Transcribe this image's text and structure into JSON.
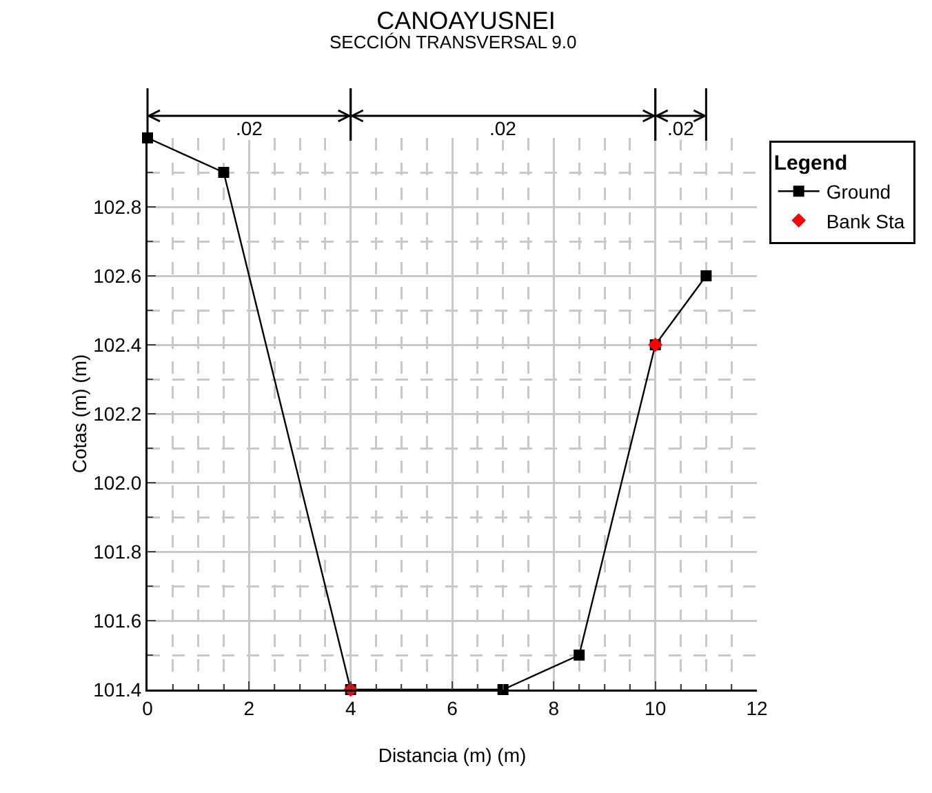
{
  "chart_data": {
    "type": "line",
    "title": "CANOAYUSNEI",
    "subtitle": "SECCIÓN TRANSVERSAL 9.0",
    "xlabel": "Distancia (m) (m)",
    "ylabel": "Cotas (m) (m)",
    "legend_title": "Legend",
    "series": [
      {
        "name": "Ground",
        "color": "#000000",
        "type": "line",
        "marker": "square",
        "x": [
          0,
          1.5,
          4,
          7,
          8.5,
          10,
          11
        ],
        "values": [
          103.0,
          102.9,
          101.4,
          101.4,
          101.5,
          102.4,
          102.6
        ]
      },
      {
        "name": "Bank Sta",
        "color": "#ff0000",
        "type": "scatter",
        "marker": "diamond",
        "x": [
          4,
          10
        ],
        "values": [
          101.4,
          102.4
        ]
      }
    ],
    "xlim": [
      0,
      12
    ],
    "xticks": [
      0,
      2,
      4,
      6,
      8,
      10,
      12
    ],
    "ylim": [
      101.4,
      103.0
    ],
    "yticks": [
      101.4,
      101.6,
      101.8,
      {
        "value": 102,
        "label": "102.0"
      },
      102.2,
      102.4,
      102.6,
      102.8
    ],
    "annotations": [
      {
        "text": ".02",
        "x": 2
      },
      {
        "text": ".02",
        "x": 7
      },
      {
        "text": ".02",
        "x": 10.5
      }
    ],
    "grid": true,
    "legend": "top right",
    "line_style": "solid"
  }
}
